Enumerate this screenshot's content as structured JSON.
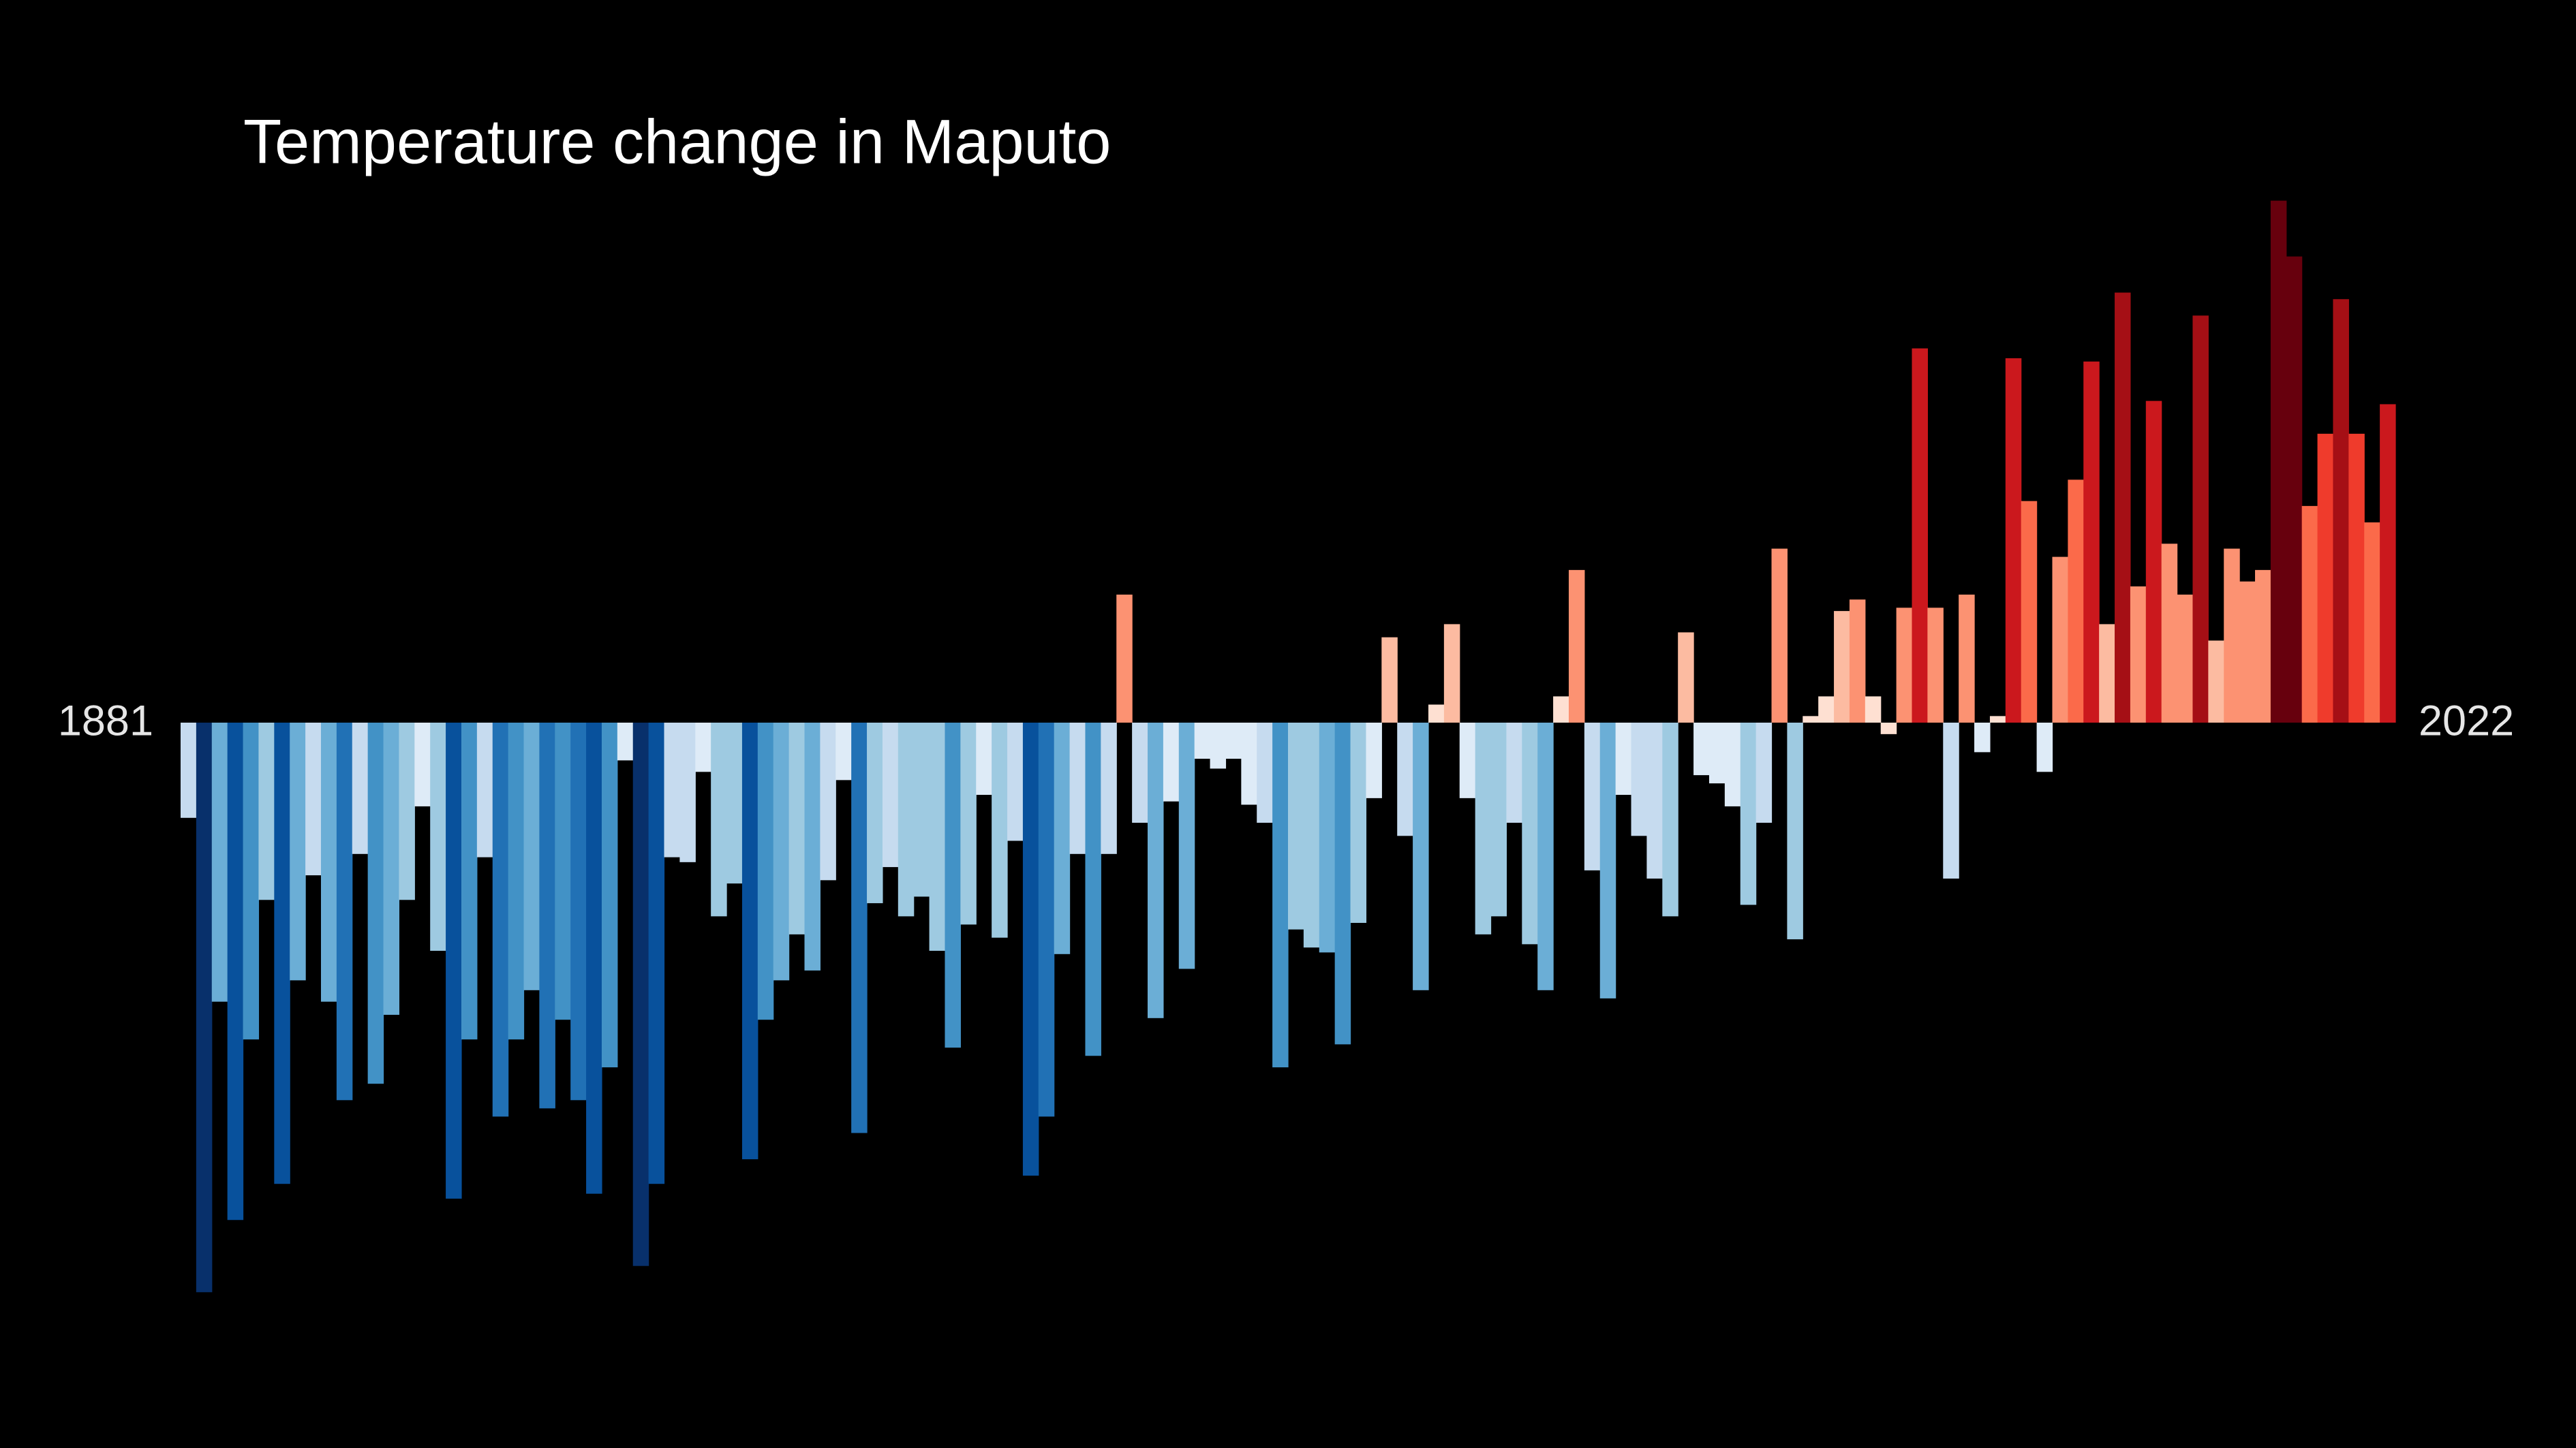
{
  "chart_data": {
    "type": "bar",
    "title": "Temperature change in Maputo",
    "categories": [
      "1881",
      null,
      null,
      null,
      null,
      null,
      null,
      null,
      null,
      null,
      null,
      null,
      null,
      null,
      null,
      null,
      null,
      null,
      null,
      null,
      null,
      null,
      null,
      null,
      null,
      null,
      null,
      null,
      null,
      null,
      null,
      null,
      null,
      null,
      null,
      null,
      null,
      null,
      null,
      null,
      null,
      null,
      null,
      null,
      null,
      null,
      null,
      null,
      null,
      null,
      null,
      null,
      null,
      null,
      null,
      null,
      null,
      null,
      null,
      null,
      null,
      null,
      null,
      null,
      null,
      null,
      null,
      null,
      null,
      null,
      null,
      null,
      null,
      null,
      null,
      null,
      null,
      null,
      null,
      null,
      null,
      null,
      null,
      null,
      null,
      null,
      null,
      null,
      null,
      null,
      null,
      null,
      null,
      null,
      null,
      null,
      null,
      null,
      null,
      null,
      null,
      null,
      null,
      null,
      null,
      null,
      null,
      null,
      null,
      null,
      null,
      null,
      null,
      null,
      null,
      null,
      null,
      null,
      null,
      null,
      null,
      null,
      null,
      null,
      null,
      null,
      null,
      null,
      null,
      null,
      null,
      null,
      null,
      null,
      null,
      null,
      null,
      null,
      null,
      null,
      null,
      "2022"
    ],
    "values": [
      -0.58,
      -3.47,
      -1.7,
      -3.03,
      -1.93,
      -1.08,
      -2.81,
      -1.57,
      -0.93,
      -1.7,
      -2.3,
      -0.8,
      -2.2,
      -1.78,
      -1.08,
      -0.51,
      -1.39,
      -2.9,
      -1.93,
      -0.82,
      -2.4,
      -1.93,
      -1.63,
      -2.35,
      -1.81,
      -2.3,
      -2.87,
      -2.1,
      -0.23,
      -3.31,
      -2.81,
      -0.82,
      -0.85,
      -0.3,
      -1.18,
      -0.98,
      -2.66,
      -1.81,
      -1.57,
      -1.29,
      -1.51,
      -0.96,
      -0.35,
      -2.5,
      -1.1,
      -0.88,
      -1.18,
      -1.06,
      -1.39,
      -1.98,
      -1.23,
      -0.44,
      -1.31,
      -0.72,
      -2.76,
      -2.4,
      -1.41,
      -0.8,
      -2.03,
      -0.8,
      0.78,
      -0.61,
      -1.8,
      -0.48,
      -1.5,
      -0.22,
      -0.28,
      -0.22,
      -0.5,
      -0.61,
      -2.1,
      -1.26,
      -1.37,
      -1.4,
      -1.96,
      -1.22,
      -0.46,
      0.52,
      -0.69,
      -1.63,
      0.11,
      0.6,
      -0.46,
      -1.29,
      -1.18,
      -0.61,
      -1.35,
      -1.63,
      0.16,
      0.93,
      -0.9,
      -1.68,
      -0.44,
      -0.69,
      -0.95,
      -1.18,
      0.55,
      -0.32,
      -0.37,
      -0.51,
      -1.11,
      -0.61,
      1.06,
      -1.32,
      0.04,
      0.16,
      0.68,
      0.75,
      0.16,
      -0.07,
      0.7,
      2.28,
      0.7,
      -0.95,
      0.78,
      -0.18,
      0.04,
      2.22,
      1.35,
      -0.3,
      1.01,
      1.48,
      2.2,
      0.6,
      2.62,
      0.83,
      1.96,
      1.09,
      0.78,
      2.48,
      0.5,
      1.06,
      0.86,
      0.93,
      3.18,
      2.84,
      1.32,
      1.76,
      2.58,
      1.76,
      1.22,
      1.94
    ],
    "colormap": [
      "#08306b",
      "#08519c",
      "#2171b5",
      "#4292c6",
      "#6baed6",
      "#9ecae1",
      "#c6dbef",
      "#deebf7",
      "#fee0d2",
      "#fcbba1",
      "#fc9272",
      "#fb6a4a",
      "#ef3b2c",
      "#cb181d",
      "#a50f15",
      "#67000d"
    ],
    "background": "#000000"
  }
}
